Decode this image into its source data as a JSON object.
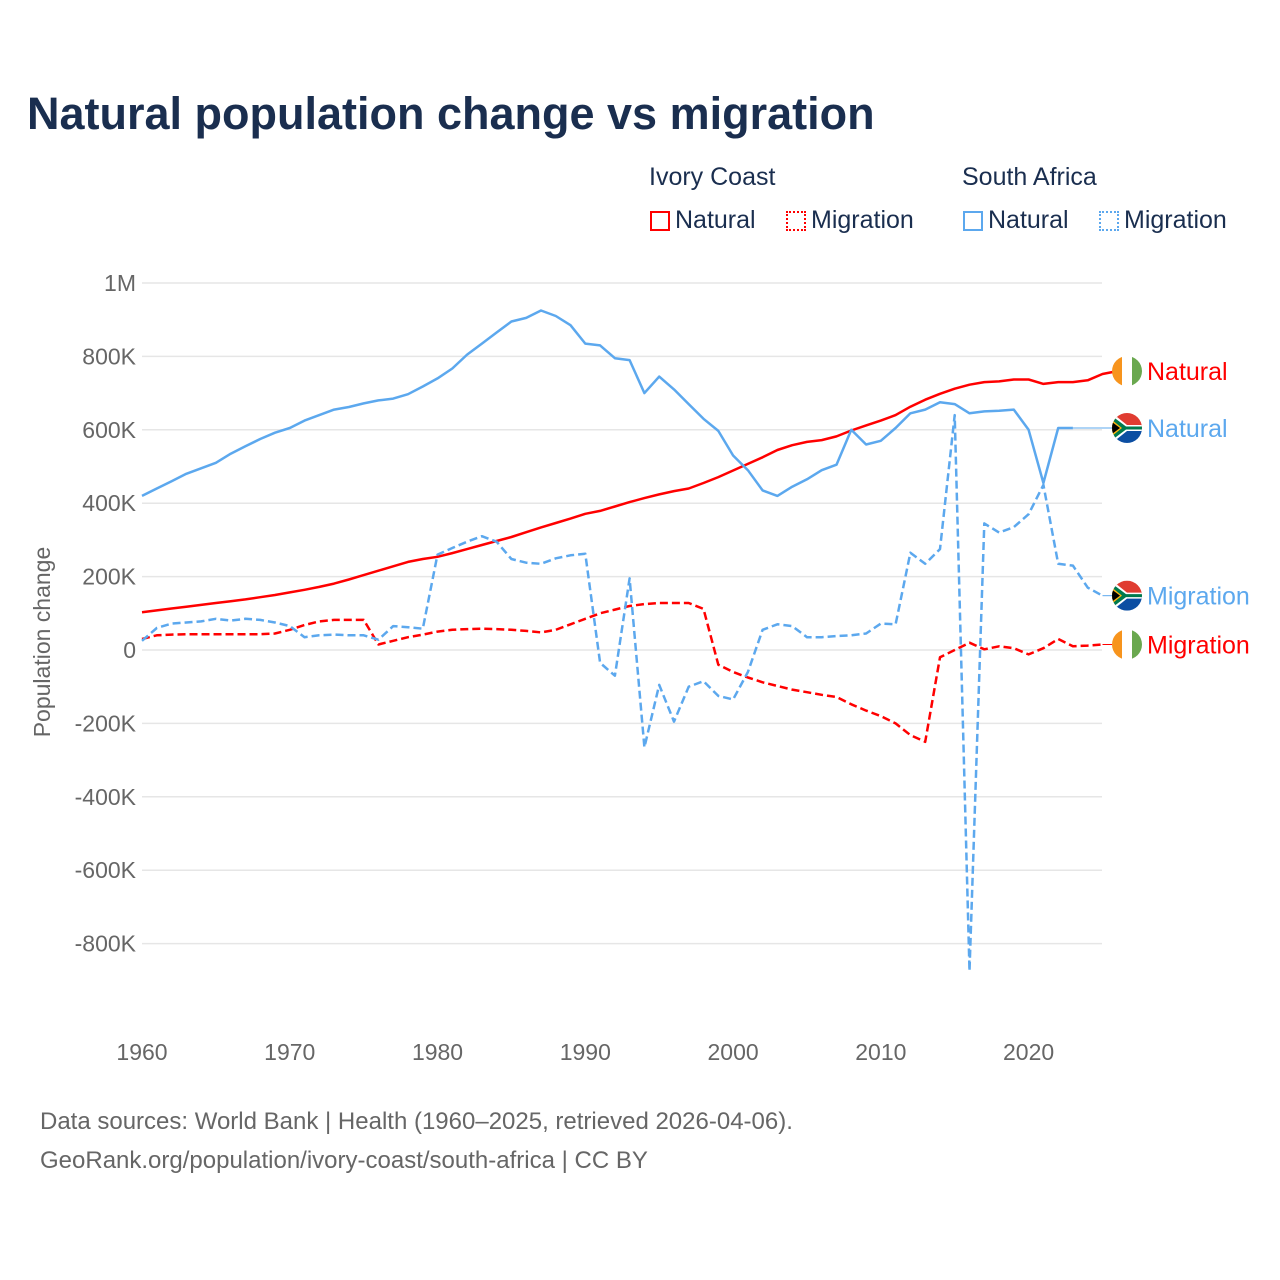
{
  "title": "Natural population change vs migration",
  "legend": {
    "groups": [
      {
        "name": "Ivory Coast",
        "color": "#ff0000",
        "items": [
          "Natural",
          "Migration"
        ]
      },
      {
        "name": "South Africa",
        "color": "#5ca8ee",
        "items": [
          "Natural",
          "Migration"
        ]
      }
    ]
  },
  "footer": {
    "line1": "Data sources: World Bank | Health (1960–2025, retrieved 2026-04-06).",
    "line2": "GeoRank.org/population/ivory-coast/south-africa | CC BY"
  },
  "chart_data": {
    "type": "line",
    "title": "Natural population change vs migration",
    "xlabel": "",
    "ylabel": "Population change",
    "xlim": [
      1960,
      2025
    ],
    "ylim": [
      -1000000,
      1000000
    ],
    "x_ticks": [
      1960,
      1970,
      1980,
      1990,
      2000,
      2010,
      2020
    ],
    "y_ticks": [
      {
        "v": 1000000,
        "label": "1M"
      },
      {
        "v": 800000,
        "label": "800K"
      },
      {
        "v": 600000,
        "label": "600K"
      },
      {
        "v": 400000,
        "label": "400K"
      },
      {
        "v": 200000,
        "label": "200K"
      },
      {
        "v": 0,
        "label": "0"
      },
      {
        "v": -200000,
        "label": "-200K"
      },
      {
        "v": -400000,
        "label": "-400K"
      },
      {
        "v": -600000,
        "label": "-600K"
      },
      {
        "v": -800000,
        "label": "-800K"
      }
    ],
    "grid": true,
    "legend_position": "top-right",
    "x_start": 1960,
    "series": [
      {
        "name": "Ivory Coast Natural",
        "end_label": "Natural",
        "flag": "ivory-coast",
        "color": "#ff0000",
        "dash": false,
        "values_k": [
          103,
          108,
          113,
          118,
          123,
          128,
          133,
          138,
          144,
          150,
          157,
          164,
          172,
          181,
          192,
          204,
          216,
          228,
          240,
          248,
          254,
          264,
          275,
          286,
          297,
          308,
          321,
          334,
          346,
          358,
          371,
          379,
          391,
          403,
          414,
          424,
          433,
          440,
          455,
          471,
          489,
          507,
          525,
          545,
          558,
          567,
          572,
          582,
          598,
          612,
          625,
          640,
          663,
          682,
          698,
          712,
          723,
          730,
          732,
          737,
          737,
          725,
          730,
          730,
          735,
          752,
          760,
          null,
          null
        ]
      },
      {
        "name": "Ivory Coast Migration",
        "end_label": "Migration",
        "flag": "ivory-coast",
        "color": "#ff0000",
        "dash": true,
        "values_k": [
          30,
          40,
          42,
          43,
          43,
          43,
          43,
          43,
          43,
          45,
          55,
          68,
          78,
          82,
          82,
          82,
          15,
          25,
          35,
          42,
          50,
          55,
          57,
          58,
          57,
          55,
          52,
          48,
          55,
          70,
          85,
          100,
          110,
          120,
          125,
          128,
          128,
          128,
          112,
          -40,
          -60,
          -75,
          -88,
          -98,
          -108,
          -115,
          -122,
          -128,
          -148,
          -165,
          -180,
          -200,
          -232,
          -250,
          -20,
          0,
          20,
          2,
          10,
          5,
          -12,
          5,
          30,
          10,
          12,
          15
        ]
      },
      {
        "name": "South Africa Natural",
        "end_label": "Natural",
        "flag": "south-africa",
        "color": "#5ca8ee",
        "dash": false,
        "values_k": [
          420,
          440,
          460,
          480,
          495,
          510,
          535,
          555,
          575,
          592,
          605,
          625,
          640,
          655,
          662,
          672,
          680,
          685,
          697,
          718,
          740,
          767,
          805,
          835,
          865,
          895,
          905,
          925,
          910,
          885,
          835,
          830,
          795,
          790,
          700,
          745,
          710,
          670,
          630,
          597,
          530,
          490,
          435,
          420,
          445,
          465,
          490,
          505,
          600,
          560,
          570,
          605,
          645,
          655,
          675,
          670,
          645,
          650,
          652,
          655,
          600,
          455,
          605,
          605
        ]
      },
      {
        "name": "South Africa Migration",
        "end_label": "Migration",
        "flag": "south-africa",
        "color": "#5ca8ee",
        "dash": true,
        "values_k": [
          25,
          60,
          72,
          75,
          78,
          85,
          80,
          85,
          82,
          75,
          65,
          35,
          40,
          42,
          40,
          40,
          28,
          65,
          62,
          58,
          260,
          278,
          295,
          310,
          295,
          248,
          238,
          235,
          250,
          258,
          262,
          -35,
          -70,
          195,
          -265,
          -95,
          -195,
          -100,
          -85,
          -125,
          -135,
          -60,
          55,
          70,
          65,
          35,
          35,
          38,
          40,
          45,
          72,
          70,
          265,
          235,
          275,
          640,
          -875,
          345,
          320,
          335,
          370,
          450,
          235,
          230,
          170,
          148
        ]
      }
    ]
  }
}
